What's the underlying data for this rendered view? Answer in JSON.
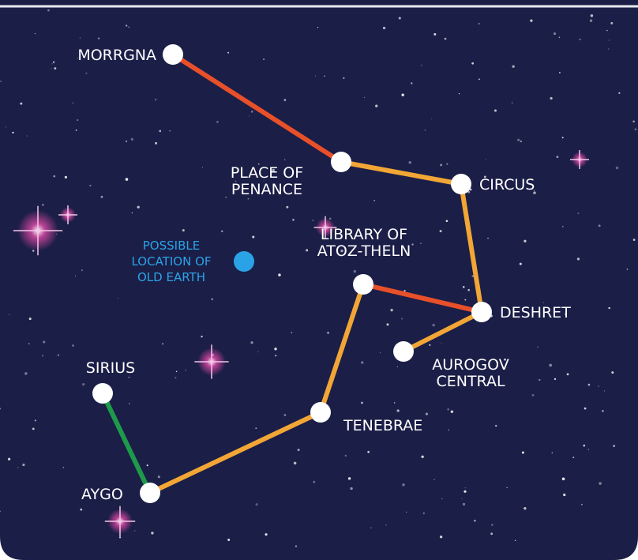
{
  "nodes": [
    {
      "label": [
        "MORRGNA"
      ]
    },
    {
      "label": [
        "PLACE OF",
        "PENANCE"
      ]
    },
    {
      "label": [
        "CIRCUS"
      ]
    },
    {
      "label": [
        "LIBRARY OF",
        "ATOZ-THELN"
      ]
    },
    {
      "label": [
        "DESHRET"
      ]
    },
    {
      "label": [
        "AUROGOV",
        "CENTRAL"
      ]
    },
    {
      "label": [
        "TENEBRAE"
      ]
    },
    {
      "label": [
        "SIRIUS"
      ]
    },
    {
      "label": [
        "AYGO"
      ]
    }
  ],
  "marker": {
    "label": [
      "POSSIBLE",
      "LOCATION OF",
      "OLD EARTH"
    ]
  }
}
